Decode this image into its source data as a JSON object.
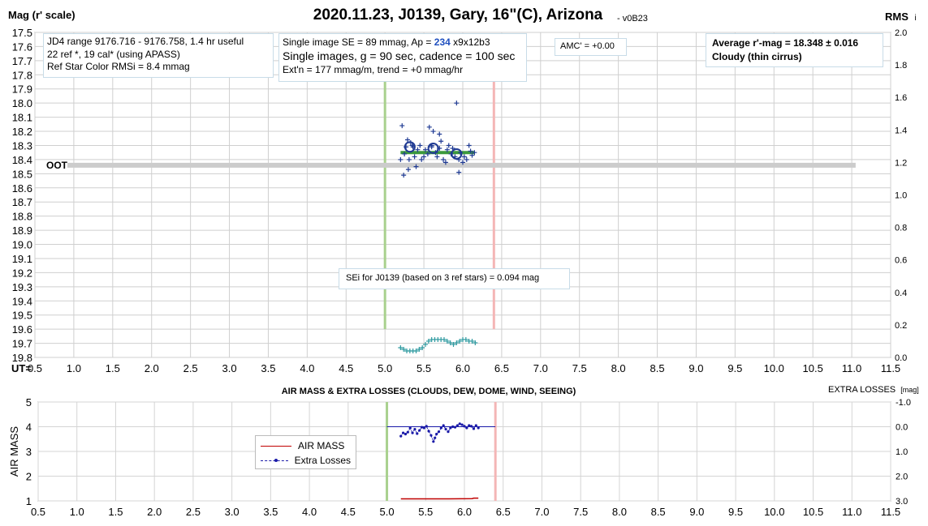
{
  "chart_data": [
    {
      "type": "scatter",
      "title": "2020.11.23, J0139, Gary, 16\"(C), Arizona",
      "version_tag": "- v0B23",
      "ylabel": "Mag (r' scale)",
      "y2label_main": "RMS",
      "y2label_sub": "i",
      "xlabel": "UT=",
      "xlim": [
        0.5,
        11.5
      ],
      "ylim": [
        17.5,
        19.8
      ],
      "y2lim": [
        0.0,
        2.0
      ],
      "x_ticks": [
        "0.5",
        "1.0",
        "1.5",
        "2.0",
        "2.5",
        "3.0",
        "3.5",
        "4.0",
        "4.5",
        "5.0",
        "5.5",
        "6.0",
        "6.5",
        "7.0",
        "7.5",
        "8.0",
        "8.5",
        "9.0",
        "9.5",
        "10.0",
        "10.5",
        "11.0",
        "11.5"
      ],
      "y_ticks": [
        "17.5",
        "17.6",
        "17.7",
        "17.8",
        "17.9",
        "18.0",
        "18.1",
        "18.2",
        "18.3",
        "18.4",
        "18.5",
        "18.6",
        "18.7",
        "18.8",
        "18.9",
        "19.0",
        "19.1",
        "19.2",
        "19.3",
        "19.4",
        "19.5",
        "19.6",
        "19.7",
        "19.8"
      ],
      "y2_ticks": [
        "0.0",
        "0.2",
        "0.4",
        "0.6",
        "0.8",
        "1.0",
        "1.2",
        "1.4",
        "1.6",
        "1.8",
        "2.0"
      ],
      "grid": true,
      "oot_label": "OOT",
      "oot_level": 18.44,
      "oot_x_range": [
        0.5,
        11.05
      ],
      "fit_level": 18.35,
      "fit_x_range": [
        5.2,
        6.15
      ],
      "ingress_ut": 5.0,
      "egress_ut": 6.4,
      "series": [
        {
          "name": "Single images",
          "x": [
            5.2,
            5.22,
            5.25,
            5.27,
            5.29,
            5.31,
            5.33,
            5.35,
            5.38,
            5.4,
            5.42,
            5.45,
            5.47,
            5.5,
            5.52,
            5.55,
            5.57,
            5.6,
            5.62,
            5.65,
            5.67,
            5.7,
            5.72,
            5.75,
            5.78,
            5.8,
            5.82,
            5.85,
            5.87,
            5.9,
            5.92,
            5.95,
            5.97,
            6.0,
            6.02,
            6.05,
            6.08,
            6.1,
            6.12,
            6.15,
            5.24,
            5.3,
            5.6,
            5.95,
            5.36,
            5.7
          ],
          "y": [
            18.4,
            18.16,
            18.36,
            18.31,
            18.26,
            18.4,
            18.28,
            18.3,
            18.38,
            18.45,
            18.33,
            18.3,
            18.4,
            18.38,
            18.33,
            18.36,
            18.17,
            18.3,
            18.2,
            18.35,
            18.38,
            18.32,
            18.27,
            18.4,
            18.42,
            18.33,
            18.3,
            18.36,
            18.32,
            18.38,
            18.0,
            18.4,
            18.35,
            18.42,
            18.38,
            18.4,
            18.3,
            18.34,
            18.37,
            18.35,
            18.51,
            18.47,
            18.31,
            18.49,
            18.31,
            18.22
          ]
        },
        {
          "name": "Group averages",
          "x": [
            5.32,
            5.62,
            5.92
          ],
          "y": [
            18.31,
            18.32,
            18.36
          ]
        },
        {
          "name": "RMS",
          "x": [
            5.2,
            5.24,
            5.28,
            5.32,
            5.36,
            5.4,
            5.44,
            5.48,
            5.52,
            5.56,
            5.6,
            5.64,
            5.68,
            5.72,
            5.76,
            5.8,
            5.84,
            5.88,
            5.92,
            5.96,
            6.0,
            6.04,
            6.08,
            6.12,
            6.16
          ],
          "y": [
            0.06,
            0.05,
            0.04,
            0.04,
            0.04,
            0.04,
            0.05,
            0.06,
            0.08,
            0.1,
            0.11,
            0.11,
            0.11,
            0.11,
            0.11,
            0.1,
            0.09,
            0.08,
            0.09,
            0.1,
            0.11,
            0.11,
            0.1,
            0.1,
            0.09
          ]
        }
      ],
      "info_left": [
        "JD4 range 9176.716 - 9176.758, 1.4 hr useful",
        "22 ref *, 19 cal* (using APASS)",
        "Ref Star Color RMSi = 8.4 mmag"
      ],
      "info_mid": {
        "line1_prefix": "Single image SE = 89 mmag, Ap = ",
        "ap_value": "234",
        "line1_suffix": " x9x12b3",
        "line2": "Single images, g = 90 sec, cadence = 100 sec",
        "line3": "Ext'n = 177 mmag/m, trend = +0 mmag/hr"
      },
      "amc": "AMC' = +0.00",
      "average": "Average r'-mag =  18.348 ± 0.016",
      "conditions": "Cloudy (thin cirrus)",
      "sei_note": "SEi for J0139 (based on 3 ref stars) = 0.094 mag"
    },
    {
      "type": "line",
      "title": "AIR MASS & EXTRA LOSSES (CLOUDS, DEW, DOME, WIND, SEEING)",
      "ylabel": "AIR MASS",
      "y2label": "EXTRA LOSSES",
      "y2unit": "[mag]",
      "xlim": [
        0.5,
        11.5
      ],
      "ylim": [
        1,
        5
      ],
      "y2lim": [
        3.0,
        -1.0
      ],
      "x_ticks": [
        "0.5",
        "1.0",
        "1.5",
        "2.0",
        "2.5",
        "3.0",
        "3.5",
        "4.0",
        "4.5",
        "5.0",
        "5.5",
        "6.0",
        "6.5",
        "7.0",
        "7.5",
        "8.0",
        "8.5",
        "9.0",
        "9.5",
        "10.0",
        "10.5",
        "11.0",
        "11.5"
      ],
      "y_ticks": [
        "1",
        "2",
        "3",
        "4",
        "5"
      ],
      "y2_ticks": [
        "3.0",
        "2.0",
        "1.0",
        "0.0",
        "-1.0"
      ],
      "grid": true,
      "ingress_ut": 5.0,
      "egress_ut": 6.4,
      "zero_line_x_range": [
        5.0,
        6.4
      ],
      "legend": [
        "AIR MASS",
        "Extra Losses"
      ],
      "series": [
        {
          "name": "AIR MASS",
          "x": [
            5.18,
            5.5,
            5.8,
            6.1,
            6.12,
            6.18
          ],
          "y": [
            1.08,
            1.08,
            1.08,
            1.09,
            1.11,
            1.11
          ]
        },
        {
          "name": "Extra Losses",
          "x": [
            5.18,
            5.21,
            5.24,
            5.27,
            5.3,
            5.33,
            5.36,
            5.39,
            5.42,
            5.45,
            5.48,
            5.51,
            5.54,
            5.57,
            5.6,
            5.62,
            5.64,
            5.67,
            5.7,
            5.73,
            5.76,
            5.79,
            5.82,
            5.85,
            5.88,
            5.91,
            5.94,
            5.97,
            6.0,
            6.03,
            6.06,
            6.09,
            6.12,
            6.15,
            6.18
          ],
          "y": [
            0.38,
            0.25,
            0.3,
            0.22,
            0.05,
            0.25,
            0.1,
            0.28,
            0.15,
            0.02,
            0.05,
            -0.02,
            0.18,
            0.35,
            0.6,
            0.45,
            0.3,
            0.2,
            0.05,
            -0.05,
            0.1,
            0.2,
            0.05,
            0.0,
            0.02,
            -0.05,
            -0.12,
            -0.08,
            -0.02,
            0.05,
            -0.05,
            -0.02,
            0.08,
            -0.05,
            0.05
          ]
        }
      ]
    }
  ]
}
